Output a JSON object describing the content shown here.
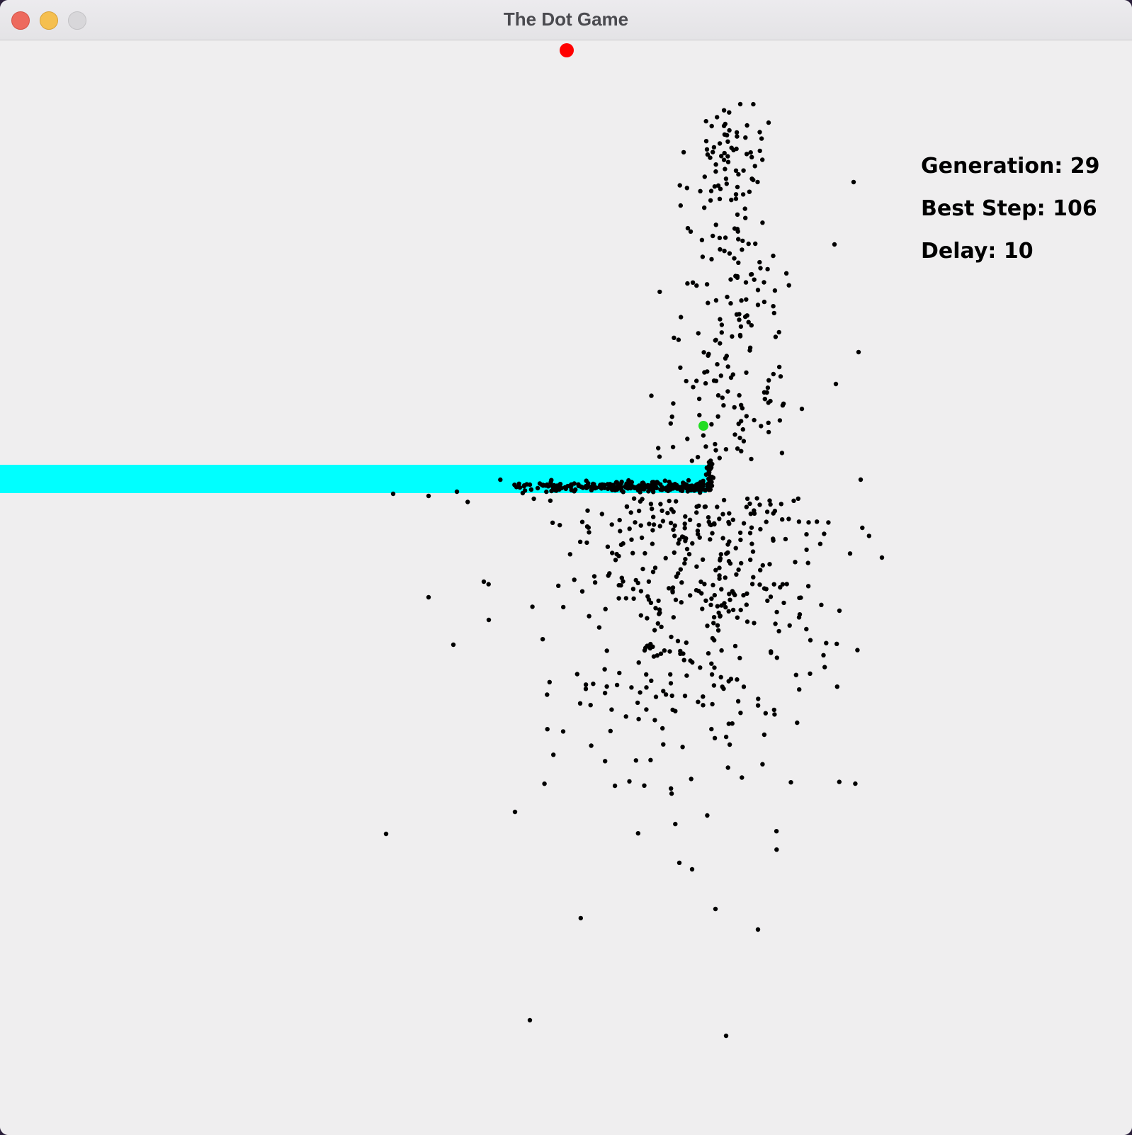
{
  "window": {
    "title": "The Dot Game"
  },
  "hud": {
    "generation": "Generation: 29",
    "best_step": "Best Step: 106",
    "delay": "Delay: 10"
  },
  "colors": {
    "goal": "#ff0000",
    "best_dot": "#22dd22",
    "obstacle": "#00ffff",
    "dot": "#000000",
    "background": "#efeeef"
  }
}
